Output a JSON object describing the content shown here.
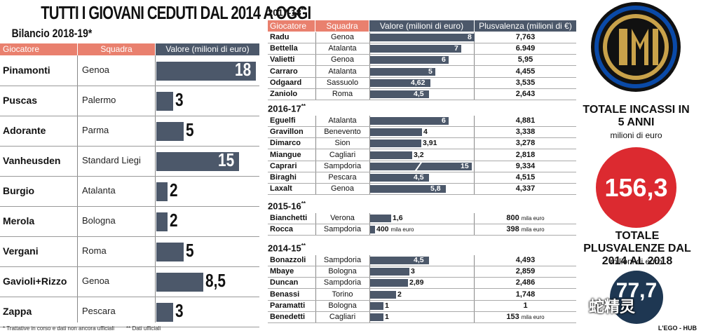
{
  "title": "TUTTI I GIOVANI CEDUTI DAL 2014 A OGGI",
  "subtitle": "Bilancio 2018-19*",
  "chart_data": [
    {
      "type": "bar",
      "title": "Bilancio 2018-19*",
      "columns": [
        "Giocatore",
        "Squadra",
        "Valore (milioni di euro)"
      ],
      "rows": [
        {
          "player": "Pinamonti",
          "team": "Genoa",
          "value": 18,
          "label": "18"
        },
        {
          "player": "Puscas",
          "team": "Palermo",
          "value": 3,
          "label": "3"
        },
        {
          "player": "Adorante",
          "team": "Parma",
          "value": 5,
          "label": "5"
        },
        {
          "player": "Vanheusden",
          "team": "Standard Liegi",
          "value": 15,
          "label": "15"
        },
        {
          "player": "Burgio",
          "team": "Atalanta",
          "value": 2,
          "label": "2"
        },
        {
          "player": "Merola",
          "team": "Bologna",
          "value": 2,
          "label": "2"
        },
        {
          "player": "Vergani",
          "team": "Roma",
          "value": 5,
          "label": "5"
        },
        {
          "player": "Gavioli+Rizzo",
          "team": "Genoa",
          "value": 8.5,
          "label": "8,5"
        },
        {
          "player": "Zappa",
          "team": "Pescara",
          "value": 3,
          "label": "3"
        }
      ]
    },
    {
      "type": "bar",
      "columns": [
        "Giocatore",
        "Squadra",
        "Valore (milioni di euro)",
        "Plusvalenza (milioni di €)"
      ],
      "sections": [
        {
          "title": "2017-18",
          "mark": "**",
          "rows": [
            {
              "player": "Radu",
              "team": "Genoa",
              "value": 8,
              "label": "8",
              "plus": "7,763"
            },
            {
              "player": "Bettella",
              "team": "Atalanta",
              "value": 7,
              "label": "7",
              "plus": "6.949"
            },
            {
              "player": "Valietti",
              "team": "Genoa",
              "value": 6,
              "label": "6",
              "plus": "5,95"
            },
            {
              "player": "Carraro",
              "team": "Atalanta",
              "value": 5,
              "label": "5",
              "plus": "4,455"
            },
            {
              "player": "Odgaard",
              "team": "Sassuolo",
              "value": 4.62,
              "label": "4,62",
              "plus": "3,535"
            },
            {
              "player": "Zaniolo",
              "team": "Roma",
              "value": 4.5,
              "label": "4,5",
              "plus": "2,643"
            }
          ]
        },
        {
          "title": "2016-17",
          "mark": "**",
          "rows": [
            {
              "player": "Eguelfi",
              "team": "Atalanta",
              "value": 6,
              "label": "6",
              "plus": "4,881"
            },
            {
              "player": "Gravillon",
              "team": "Benevento",
              "value": 4,
              "label": "4",
              "plus": "3,338"
            },
            {
              "player": "Dimarco",
              "team": "Sion",
              "value": 3.91,
              "label": "3,91",
              "plus": "3,278"
            },
            {
              "player": "Miangue",
              "team": "Cagliari",
              "value": 3.2,
              "label": "3,2",
              "plus": "2,818"
            },
            {
              "player": "Caprari",
              "team": "Sampdoria",
              "value": 15,
              "label": "15",
              "plus": "9,334",
              "broken": true
            },
            {
              "player": "Biraghi",
              "team": "Pescara",
              "value": 4.5,
              "label": "4,5",
              "plus": "4,515"
            },
            {
              "player": "Laxalt",
              "team": "Genoa",
              "value": 5.8,
              "label": "5,8",
              "plus": "4,337"
            }
          ]
        },
        {
          "title": "2015-16",
          "mark": "**",
          "rows": [
            {
              "player": "Bianchetti",
              "team": "Verona",
              "value": 1.6,
              "label": "1,6",
              "plus": "800",
              "plus_unit": "mila euro"
            },
            {
              "player": "Rocca",
              "team": "Sampdoria",
              "value": 0.4,
              "label": "400",
              "label_unit": "mila euro",
              "plus": "398",
              "plus_unit": "mila euro"
            }
          ]
        },
        {
          "title": "2014-15",
          "mark": "**",
          "rows": [
            {
              "player": "Bonazzoli",
              "team": "Sampdoria",
              "value": 4.5,
              "label": "4,5",
              "plus": "4,493"
            },
            {
              "player": "Mbaye",
              "team": "Bologna",
              "value": 3,
              "label": "3",
              "plus": "2,859"
            },
            {
              "player": "Duncan",
              "team": "Sampdoria",
              "value": 2.89,
              "label": "2,89",
              "plus": "2,486"
            },
            {
              "player": "Benassi",
              "team": "Torino",
              "value": 2,
              "label": "2",
              "plus": "1,748"
            },
            {
              "player": "Paramatti",
              "team": "Bologna",
              "value": 1,
              "label": "1",
              "plus": "1"
            },
            {
              "player": "Benedetti",
              "team": "Cagliari",
              "value": 1,
              "label": "1",
              "plus": "153",
              "plus_unit": "mila euro"
            }
          ]
        }
      ]
    }
  ],
  "totals": {
    "incassi_label": "TOTALE INCASSI IN 5 ANNI",
    "incassi_unit": "milioni di euro",
    "incassi_value": "156,3",
    "plus_label": "TOTALE PLUSVALENZE DAL 2014 AL 2018",
    "plus_unit": "milioni di euro",
    "plus_value": "77,7"
  },
  "footnote1": "* Trattative in corso e dati non ancora ufficiali",
  "footnote2": "** Dati ufficiali",
  "brand": "L'EGO - HUB",
  "watermark": "蛇精灵",
  "colors": {
    "header_red": "#e9806e",
    "bar": "#4c586a",
    "total_red": "#dc2a30",
    "navy": "#1e3752"
  }
}
